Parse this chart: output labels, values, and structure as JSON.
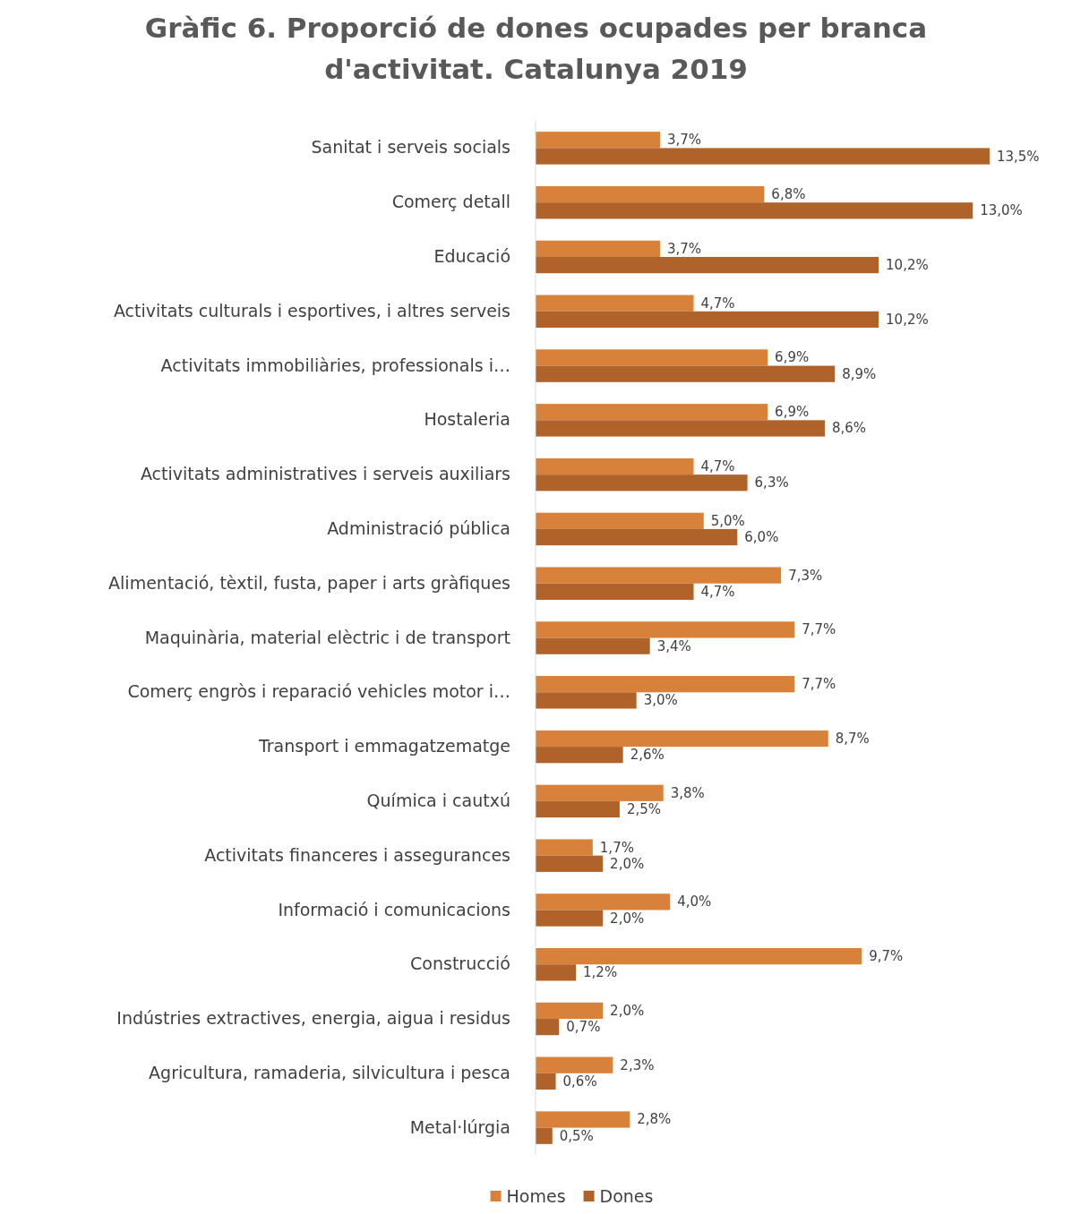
{
  "chart_data": {
    "type": "bar",
    "orientation": "horizontal",
    "title": "Gràfic 6. Proporció de dones ocupades per branca d'activitat. Catalunya 2019",
    "categories": [
      "Sanitat i serveis socials",
      "Comerç detall",
      "Educació",
      "Activitats culturals i esportives, i altres serveis",
      "Activitats immobiliàries, professionals i…",
      "Hostaleria",
      "Activitats administratives i serveis auxiliars",
      "Administració pública",
      "Alimentació, tèxtil, fusta, paper i arts gràfiques",
      "Maquinària, material elèctric i de transport",
      "Comerç engròs i reparació vehicles motor i…",
      "Transport i emmagatzematge",
      "Química i cautxú",
      "Activitats financeres i assegurances",
      "Informació i comunicacions",
      "Construcció",
      "Indústries extractives, energia, aigua i residus",
      "Agricultura, ramaderia, silvicultura i pesca",
      "Metal·lúrgia"
    ],
    "series": [
      {
        "name": "Homes",
        "color": "#d8813a",
        "values": [
          3.7,
          6.8,
          3.7,
          4.7,
          6.9,
          6.9,
          4.7,
          5.0,
          7.3,
          7.7,
          7.7,
          8.7,
          3.8,
          1.7,
          4.0,
          9.7,
          2.0,
          2.3,
          2.8
        ],
        "value_labels": [
          "3,7%",
          "6,8%",
          "3,7%",
          "4,7%",
          "6,9%",
          "6,9%",
          "4,7%",
          "5,0%",
          "7,3%",
          "7,7%",
          "7,7%",
          "8,7%",
          "3,8%",
          "1,7%",
          "4,0%",
          "9,7%",
          "2,0%",
          "2,3%",
          "2,8%"
        ]
      },
      {
        "name": "Dones",
        "color": "#b0622b",
        "values": [
          13.5,
          13.0,
          10.2,
          10.2,
          8.9,
          8.6,
          6.3,
          6.0,
          4.7,
          3.4,
          3.0,
          2.6,
          2.5,
          2.0,
          2.0,
          1.2,
          0.7,
          0.6,
          0.5
        ],
        "value_labels": [
          "13,5%",
          "13,0%",
          "10,2%",
          "10,2%",
          "8,9%",
          "8,6%",
          "6,3%",
          "6,0%",
          "4,7%",
          "3,4%",
          "3,0%",
          "2,6%",
          "2,5%",
          "2,0%",
          "2,0%",
          "1,2%",
          "0,7%",
          "0,6%",
          "0,5%"
        ]
      }
    ],
    "tick_labels": "y",
    "legend": "bottom"
  }
}
